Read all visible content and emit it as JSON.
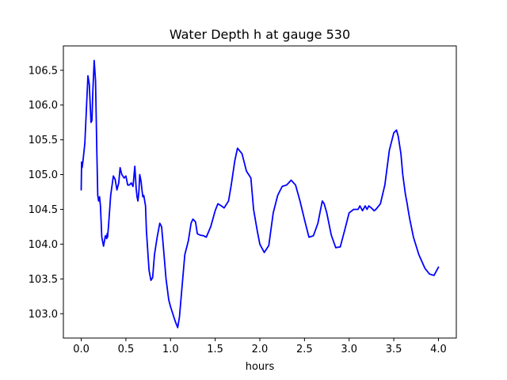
{
  "chart_data": {
    "type": "line",
    "title": "Water Depth h at gauge 530",
    "xlabel": "hours",
    "ylabel": "",
    "xlim": [
      -0.2,
      4.2
    ],
    "ylim": [
      102.65,
      106.85
    ],
    "xticks": [
      0.0,
      0.5,
      1.0,
      1.5,
      2.0,
      2.5,
      3.0,
      3.5,
      4.0
    ],
    "xtick_labels": [
      "0.0",
      "0.5",
      "1.0",
      "1.5",
      "2.0",
      "2.5",
      "3.0",
      "3.5",
      "4.0"
    ],
    "yticks": [
      103.0,
      103.5,
      104.0,
      104.5,
      105.0,
      105.5,
      106.0,
      106.5
    ],
    "ytick_labels": [
      "103.0",
      "103.5",
      "104.0",
      "104.5",
      "105.0",
      "105.5",
      "106.0",
      "106.5"
    ],
    "grid": false,
    "series": [
      {
        "color": "#0000ff",
        "x": [
          0.0,
          0.004,
          0.01,
          0.02,
          0.04,
          0.06,
          0.075,
          0.09,
          0.11,
          0.12,
          0.13,
          0.145,
          0.16,
          0.175,
          0.185,
          0.195,
          0.205,
          0.215,
          0.23,
          0.25,
          0.27,
          0.285,
          0.29,
          0.295,
          0.305,
          0.33,
          0.36,
          0.38,
          0.4,
          0.42,
          0.435,
          0.455,
          0.48,
          0.5,
          0.52,
          0.54,
          0.56,
          0.58,
          0.6,
          0.615,
          0.625,
          0.635,
          0.645,
          0.655,
          0.67,
          0.68,
          0.69,
          0.7,
          0.72,
          0.73,
          0.75,
          0.76,
          0.78,
          0.8,
          0.82,
          0.85,
          0.88,
          0.9,
          0.92,
          0.95,
          0.98,
          1.0,
          1.05,
          1.08,
          1.1,
          1.13,
          1.16,
          1.2,
          1.23,
          1.25,
          1.28,
          1.3,
          1.33,
          1.37,
          1.4,
          1.45,
          1.5,
          1.53,
          1.57,
          1.6,
          1.65,
          1.68,
          1.72,
          1.75,
          1.8,
          1.85,
          1.9,
          1.93,
          1.97,
          2.0,
          2.05,
          2.1,
          2.15,
          2.2,
          2.25,
          2.3,
          2.35,
          2.4,
          2.45,
          2.5,
          2.55,
          2.6,
          2.65,
          2.68,
          2.7,
          2.72,
          2.75,
          2.8,
          2.85,
          2.9,
          2.95,
          3.0,
          3.05,
          3.1,
          3.12,
          3.15,
          3.18,
          3.2,
          3.22,
          3.25,
          3.28,
          3.3,
          3.35,
          3.4,
          3.45,
          3.5,
          3.53,
          3.55,
          3.58,
          3.6,
          3.63,
          3.65,
          3.66,
          3.68,
          3.72,
          3.78,
          3.85,
          3.9,
          3.95,
          4.0
        ],
        "y": [
          104.78,
          105.18,
          105.1,
          105.2,
          105.45,
          106.0,
          106.42,
          106.3,
          105.75,
          105.78,
          106.2,
          106.64,
          106.35,
          105.3,
          104.7,
          104.62,
          104.68,
          104.55,
          104.1,
          103.97,
          104.12,
          104.08,
          104.15,
          104.1,
          104.25,
          104.7,
          104.98,
          104.93,
          104.78,
          104.88,
          105.1,
          105.0,
          104.95,
          104.98,
          104.85,
          104.85,
          104.88,
          104.83,
          105.12,
          104.8,
          104.68,
          104.62,
          104.75,
          105.0,
          104.9,
          104.78,
          104.68,
          104.7,
          104.55,
          104.2,
          103.8,
          103.62,
          103.48,
          103.52,
          103.85,
          104.1,
          104.3,
          104.25,
          103.95,
          103.5,
          103.2,
          103.1,
          102.9,
          102.8,
          102.95,
          103.4,
          103.85,
          104.05,
          104.3,
          104.36,
          104.32,
          104.15,
          104.13,
          104.12,
          104.1,
          104.25,
          104.48,
          104.58,
          104.55,
          104.52,
          104.62,
          104.85,
          105.2,
          105.38,
          105.3,
          105.05,
          104.95,
          104.5,
          104.2,
          104.0,
          103.88,
          103.98,
          104.45,
          104.7,
          104.83,
          104.85,
          104.92,
          104.85,
          104.62,
          104.35,
          104.1,
          104.12,
          104.3,
          104.5,
          104.62,
          104.58,
          104.45,
          104.13,
          103.95,
          103.96,
          104.2,
          104.45,
          104.5,
          104.5,
          104.55,
          104.48,
          104.55,
          104.5,
          104.55,
          104.52,
          104.48,
          104.5,
          104.58,
          104.85,
          105.35,
          105.6,
          105.64,
          105.55,
          105.3,
          105.0,
          104.72,
          104.58,
          104.5,
          104.35,
          104.1,
          103.85,
          103.65,
          103.57,
          103.55,
          103.67
        ]
      }
    ]
  }
}
